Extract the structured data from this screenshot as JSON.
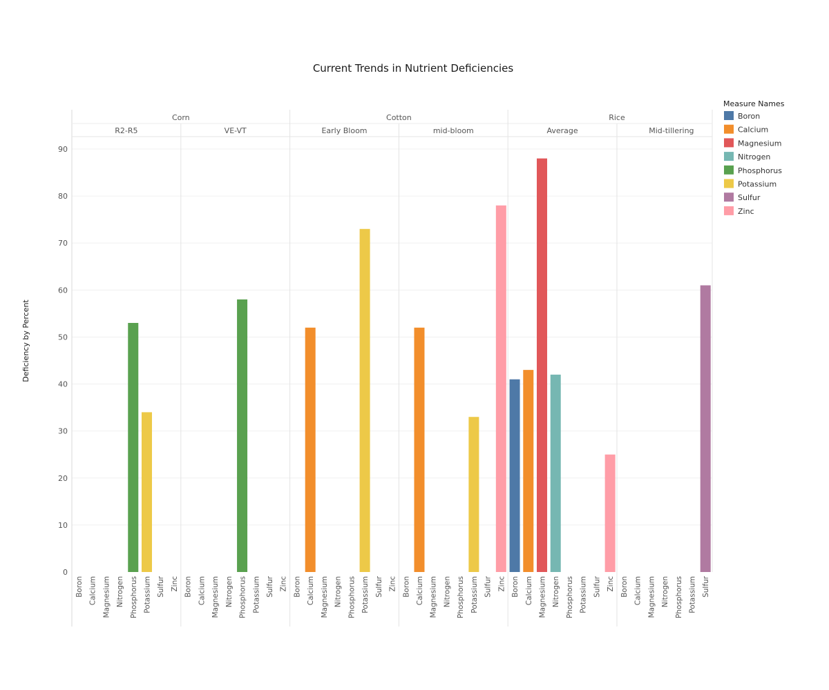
{
  "chart_data": {
    "type": "bar",
    "title": "Current Trends in Nutrient Deficiencies",
    "ylabel": "Deficiency by Percent",
    "ylim": [
      0,
      92
    ],
    "yticks": [
      0,
      10,
      20,
      30,
      40,
      50,
      60,
      70,
      80,
      90
    ],
    "grid": true,
    "legend": {
      "title": "Measure Names",
      "placement": "right",
      "entries": [
        {
          "name": "Boron",
          "color": "#4e79a7"
        },
        {
          "name": "Calcium",
          "color": "#f28e2b"
        },
        {
          "name": "Magnesium",
          "color": "#e15759"
        },
        {
          "name": "Nitrogen",
          "color": "#76b7b2"
        },
        {
          "name": "Phosphorus",
          "color": "#59a14f"
        },
        {
          "name": "Potassium",
          "color": "#edc948"
        },
        {
          "name": "Sulfur",
          "color": "#b07aa1"
        },
        {
          "name": "Zinc",
          "color": "#ff9da7"
        }
      ]
    },
    "crops": [
      {
        "name": "Corn",
        "stages": [
          {
            "name": "R2-R5",
            "categories": [
              "Boron",
              "Calcium",
              "Magnesium",
              "Nitrogen",
              "Phosphorus",
              "Potassium",
              "Sulfur",
              "Zinc"
            ],
            "values": [
              null,
              null,
              null,
              null,
              53,
              34,
              null,
              null
            ]
          },
          {
            "name": "VE-VT",
            "categories": [
              "Boron",
              "Calcium",
              "Magnesium",
              "Nitrogen",
              "Phosphorus",
              "Potassium",
              "Sulfur",
              "Zinc"
            ],
            "values": [
              null,
              null,
              null,
              null,
              58,
              null,
              null,
              null
            ]
          }
        ]
      },
      {
        "name": "Cotton",
        "stages": [
          {
            "name": "Early Bloom",
            "categories": [
              "Boron",
              "Calcium",
              "Magnesium",
              "Nitrogen",
              "Phosphorus",
              "Potassium",
              "Sulfur",
              "Zinc"
            ],
            "values": [
              null,
              52,
              null,
              null,
              null,
              73,
              null,
              null
            ]
          },
          {
            "name": "mid-bloom",
            "categories": [
              "Boron",
              "Calcium",
              "Magnesium",
              "Nitrogen",
              "Phosphorus",
              "Potassium",
              "Sulfur",
              "Zinc"
            ],
            "values": [
              null,
              52,
              null,
              null,
              null,
              33,
              null,
              78
            ]
          }
        ]
      },
      {
        "name": "Rice",
        "stages": [
          {
            "name": "Average",
            "categories": [
              "Boron",
              "Calcium",
              "Magnesium",
              "Nitrogen",
              "Phosphorus",
              "Potassium",
              "Sulfur",
              "Zinc"
            ],
            "values": [
              41,
              43,
              88,
              42,
              null,
              null,
              null,
              25
            ]
          },
          {
            "name": "Mid-tillering",
            "categories": [
              "Boron",
              "Calcium",
              "Magnesium",
              "Nitrogen",
              "Phosphorus",
              "Potassium",
              "Sulfur"
            ],
            "values": [
              null,
              null,
              null,
              null,
              null,
              null,
              61
            ]
          }
        ]
      }
    ]
  }
}
